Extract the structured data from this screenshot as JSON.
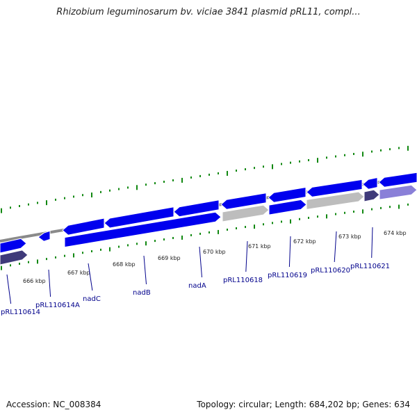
{
  "title": "Rhizobium leguminosarum bv. viciae 3841 plasmid pRL11, compl...",
  "footer": {
    "accession": "Accession: NC_008384",
    "summary": "Topology: circular; Length: 684,202 bp; Genes: 634"
  },
  "colors": {
    "backbone": "#8a8a8a",
    "gene_forward": "#0000ee",
    "gene_gray": "#bdbdbd",
    "gene_dark": "#3f3a7a",
    "gene_lavender": "#8a80d8",
    "gc_skew_ticks": "#118811",
    "label_blue": "#00008b",
    "tick_label": "#222222"
  },
  "scale": {
    "ticks": [
      "666 kbp",
      "667 kbp",
      "668 kbp",
      "669 kbp",
      "670 kbp",
      "671 kbp",
      "672 kbp",
      "673 kbp",
      "674 kbp"
    ]
  },
  "genes": [
    {
      "label": "pRL110614"
    },
    {
      "label": "pRL110614A"
    },
    {
      "label": "nadC"
    },
    {
      "label": "nadB"
    },
    {
      "label": "nadA"
    },
    {
      "label": "pRL110618"
    },
    {
      "label": "pRL110619"
    },
    {
      "label": "pRL110620"
    },
    {
      "label": "pRL110621"
    }
  ]
}
